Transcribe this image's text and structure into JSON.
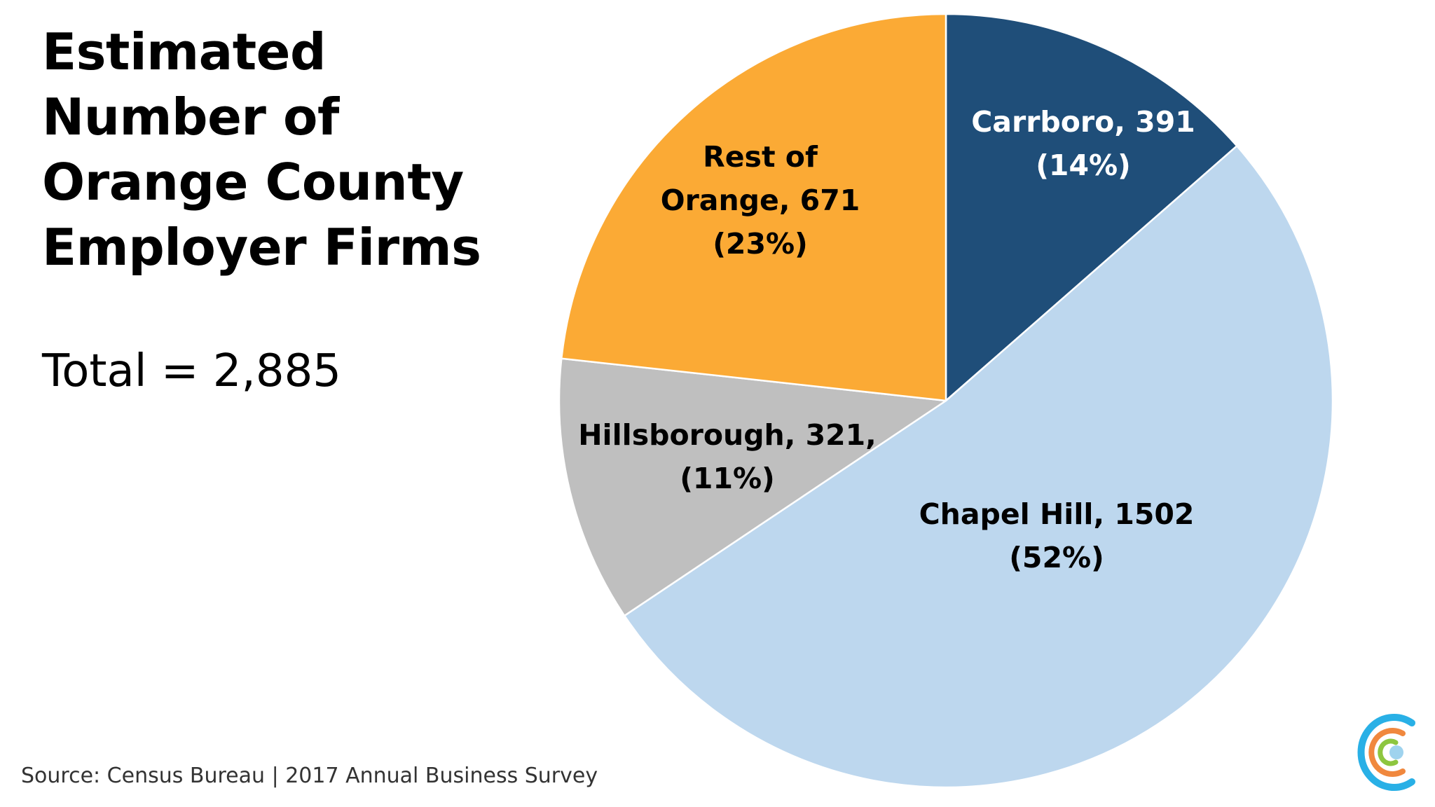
{
  "title_lines": [
    "Estimated",
    "Number of",
    "Orange County",
    "Employer Firms"
  ],
  "total_label": "Total = 2,885",
  "source": "Source: Census Bureau | 2017 Annual Business Survey",
  "logo_icon": "concentric-c-logo-icon",
  "chart_data": {
    "type": "pie",
    "title": "Estimated Number of Orange County Employer Firms",
    "total": 2885,
    "start_angle_deg": 0,
    "direction": "clockwise",
    "legend": "none",
    "slices": [
      {
        "name": "Carrboro",
        "value": 391,
        "percent": 14,
        "color": "#1f4e79",
        "label_lines": [
          "Carrboro, 391",
          "(14%)"
        ]
      },
      {
        "name": "Chapel Hill",
        "value": 1502,
        "percent": 52,
        "color": "#bdd7ee",
        "label_lines": [
          "Chapel Hill, 1502",
          "(52%)"
        ]
      },
      {
        "name": "Hillsborough",
        "value": 321,
        "percent": 11,
        "color": "#bfbfbf",
        "label_lines": [
          "Hillsborough, 321,",
          "(11%)"
        ]
      },
      {
        "name": "Rest of Orange",
        "value": 671,
        "percent": 23,
        "color": "#fbaa35",
        "label_lines": [
          "Rest of",
          "Orange, 671",
          "(23%)"
        ]
      }
    ]
  }
}
